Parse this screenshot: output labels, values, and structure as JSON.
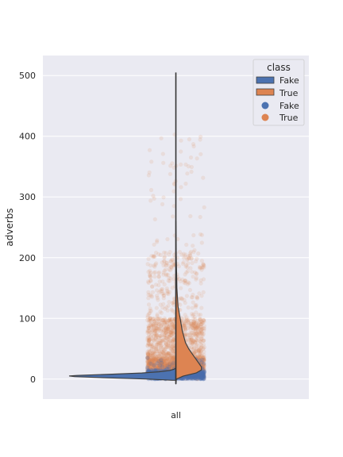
{
  "chart_data": {
    "type": "violin",
    "title": "",
    "xlabel": "",
    "ylabel": "adverbs",
    "categories": [
      "all"
    ],
    "ylim": [
      -33,
      533
    ],
    "yticks": [
      0,
      100,
      200,
      300,
      400,
      500
    ],
    "grid": true,
    "legend": {
      "title": "class",
      "position": "top-right",
      "entries": [
        {
          "label": "Fake",
          "kind": "violin",
          "color": "#4c72b0"
        },
        {
          "label": "True",
          "kind": "violin",
          "color": "#dd8452"
        },
        {
          "label": "Fake",
          "kind": "points",
          "color": "#4c72b0"
        },
        {
          "label": "True",
          "kind": "points",
          "color": "#dd8452"
        }
      ]
    },
    "violin": {
      "split": true,
      "whisker": [
        -8,
        505
      ],
      "series": [
        {
          "name": "Fake",
          "side": "left",
          "color": "#4c72b0",
          "profile": [
            [
              -2,
              0.03
            ],
            [
              0,
              0.25
            ],
            [
              2,
              0.65
            ],
            [
              4,
              0.95
            ],
            [
              5,
              1.0
            ],
            [
              6,
              0.93
            ],
            [
              8,
              0.6
            ],
            [
              10,
              0.32
            ],
            [
              12,
              0.16
            ],
            [
              14,
              0.06
            ],
            [
              16,
              0.02
            ],
            [
              18,
              0
            ]
          ]
        },
        {
          "name": "True",
          "side": "right",
          "color": "#dd8452",
          "profile": [
            [
              -8,
              0.0
            ],
            [
              0,
              0.005
            ],
            [
              5,
              0.07
            ],
            [
              10,
              0.19
            ],
            [
              15,
              0.24
            ],
            [
              20,
              0.24
            ],
            [
              25,
              0.22
            ],
            [
              30,
              0.2
            ],
            [
              40,
              0.16
            ],
            [
              50,
              0.12
            ],
            [
              60,
              0.09
            ],
            [
              80,
              0.06
            ],
            [
              100,
              0.04
            ],
            [
              120,
              0.02
            ],
            [
              150,
              0.01
            ],
            [
              200,
              0.004
            ],
            [
              260,
              0.0
            ]
          ]
        }
      ]
    },
    "strip": {
      "series": [
        {
          "name": "True",
          "color": "#dd8452",
          "count": 2600,
          "range": [
            0,
            403
          ]
        },
        {
          "name": "Fake",
          "color": "#4c72b0",
          "count": 2200,
          "range": [
            0,
            35
          ]
        }
      ]
    }
  }
}
